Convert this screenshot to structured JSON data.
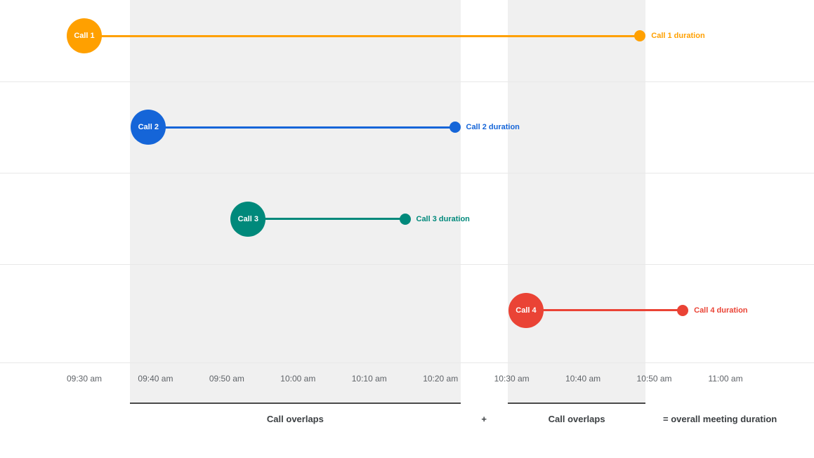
{
  "chart_data": {
    "type": "timeline",
    "title": "",
    "x_axis": {
      "ticks": [
        "09:30 am",
        "09:40 am",
        "09:50 am",
        "10:00 am",
        "10:10 am",
        "10:20 am",
        "10:30 am",
        "10:40 am",
        "10:50 am",
        "11:00 am"
      ],
      "range": [
        "09:30 am",
        "11:00 am"
      ],
      "grid": true
    },
    "series": [
      {
        "name": "Call 1",
        "start": "09:30 am",
        "end": "10:48 am",
        "duration_label": "Call 1 duration",
        "color": "#FFA000"
      },
      {
        "name": "Call 2",
        "start": "09:39 am",
        "end": "10:22 am",
        "duration_label": "Call 2 duration",
        "color": "#1565D8"
      },
      {
        "name": "Call 3",
        "start": "09:53 am",
        "end": "10:15 am",
        "duration_label": "Call 3 duration",
        "color": "#00897B"
      },
      {
        "name": "Call 4",
        "start": "10:32 am",
        "end": "10:54 am",
        "duration_label": "Call 4 duration",
        "color": "#EA4335"
      }
    ],
    "overlap_regions": [
      {
        "start": "09:39 am",
        "end": "10:22 am",
        "label": "Call overlaps"
      },
      {
        "start": "10:32 am",
        "end": "10:48 am",
        "label": "Call overlaps"
      }
    ],
    "footer": {
      "plus": "+",
      "equals_label": "= overall meeting duration"
    },
    "colors": {
      "region_fill": "#F0F0F0",
      "region_underline": "#4A4A4A",
      "gridline": "#E8E8E8",
      "tick_text": "#5F6368",
      "footer_text": "#3C4043"
    }
  }
}
